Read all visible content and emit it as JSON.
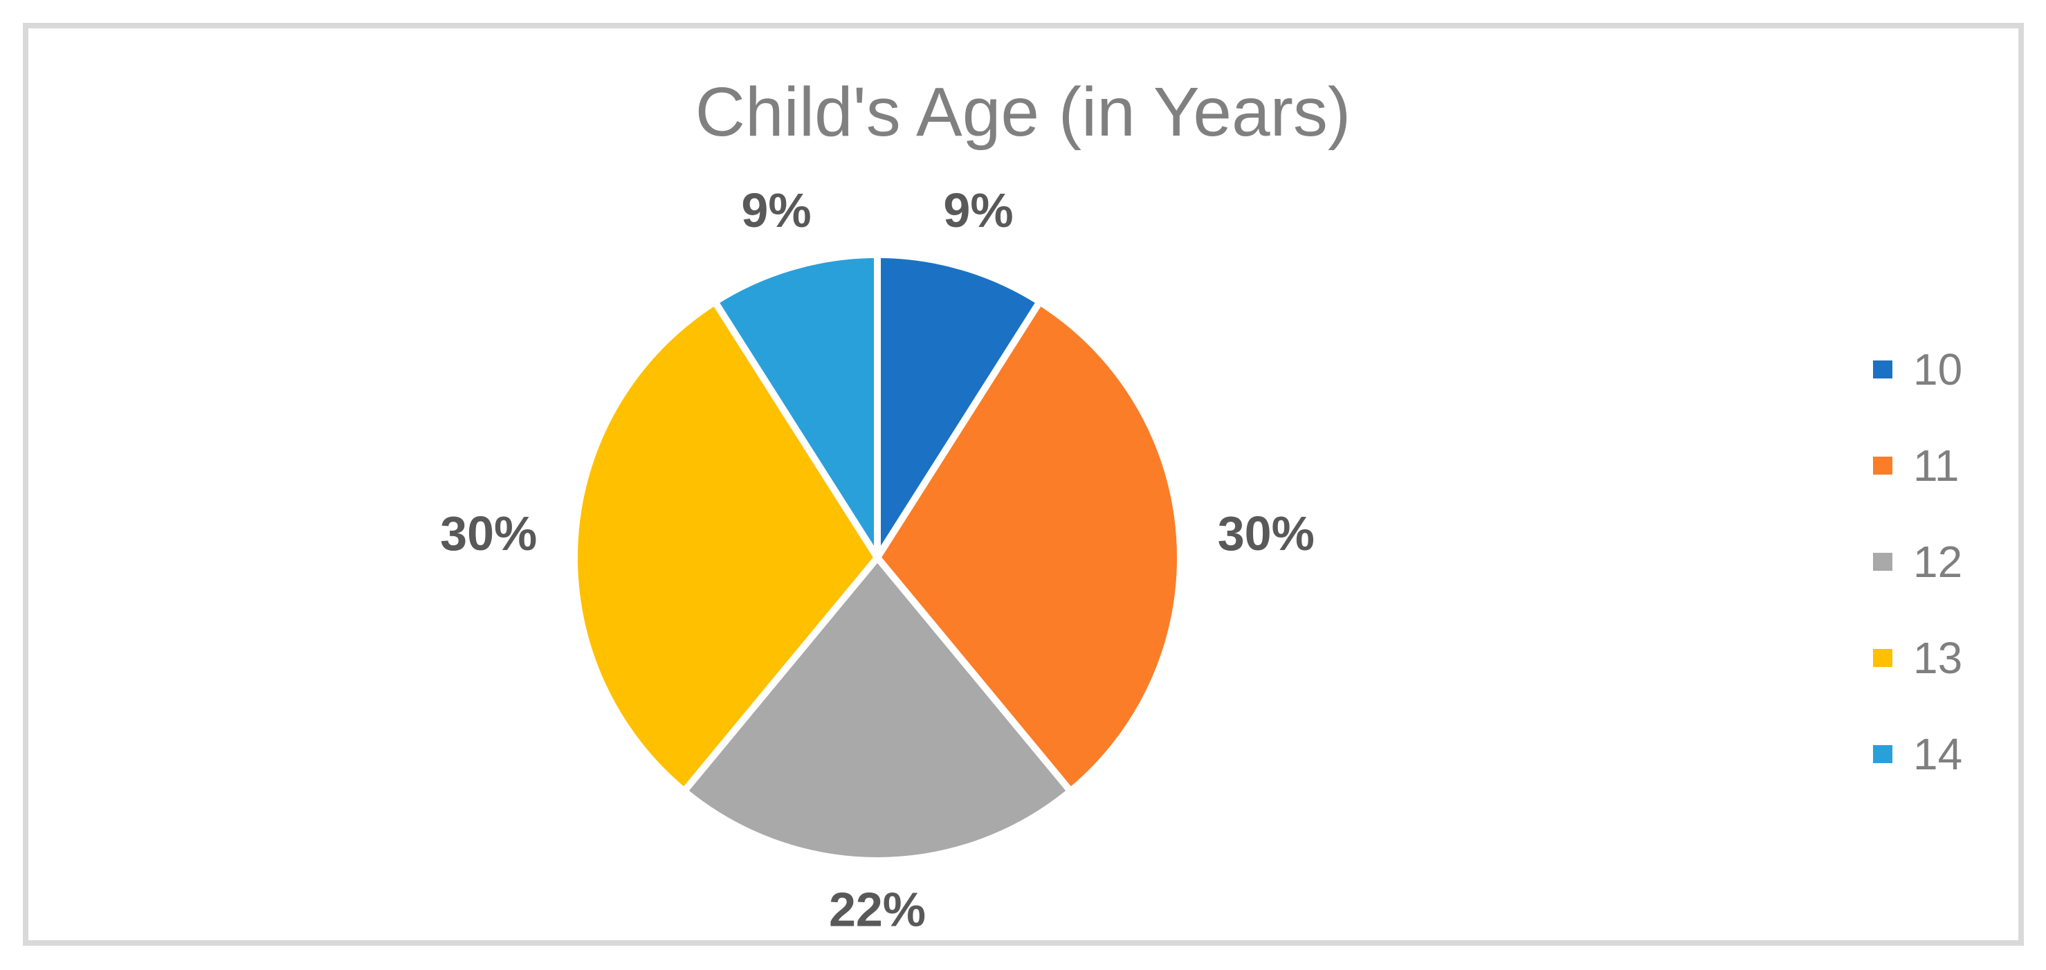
{
  "chart_data": {
    "type": "pie",
    "title": "Child's Age (in Years)",
    "categories": [
      "10",
      "11",
      "12",
      "13",
      "14"
    ],
    "values": [
      9,
      30,
      22,
      30,
      9
    ],
    "data_labels": [
      "9%",
      "30%",
      "22%",
      "30%",
      "9%"
    ],
    "colors": [
      "#1B72C4",
      "#FB7D28",
      "#A9A9A9",
      "#FFC000",
      "#2AA0DA"
    ],
    "start_angle_deg": 0,
    "direction": "clockwise",
    "slice_separator_color": "#FFFFFF",
    "legend_position": "right",
    "legend_entries": [
      "10",
      "11",
      "12",
      "13",
      "14"
    ],
    "title_color": "#808080",
    "data_label_color": "#595959",
    "legend_text_color": "#7F7F7F",
    "frame_border_color": "#D9D9D9",
    "background_color": "#FFFFFF"
  }
}
